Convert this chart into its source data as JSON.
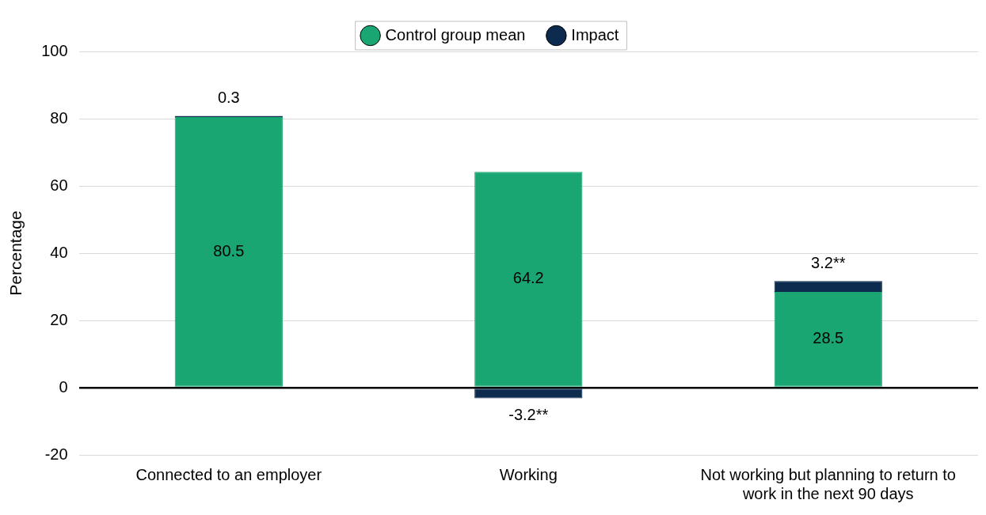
{
  "chart_data": {
    "type": "bar",
    "stacked": true,
    "ylabel": "Percentage",
    "categories": [
      "Connected to an employer",
      "Working",
      "Not working but planning to return to work in the next 90 days"
    ],
    "series": [
      {
        "name": "Control group mean",
        "color": "#1aa673",
        "values": [
          80.5,
          64.2,
          28.5
        ],
        "value_labels": [
          "80.5",
          "64.2",
          "28.5"
        ]
      },
      {
        "name": "Impact",
        "color": "#0d2b4e",
        "values": [
          0.3,
          -3.2,
          3.2
        ],
        "value_labels": [
          "0.3",
          "-3.2**",
          "3.2**"
        ]
      }
    ],
    "ylim": [
      -20,
      100
    ],
    "yticks": [
      -20,
      0,
      20,
      40,
      60,
      80,
      100
    ],
    "grid": "y",
    "legend": "top"
  }
}
